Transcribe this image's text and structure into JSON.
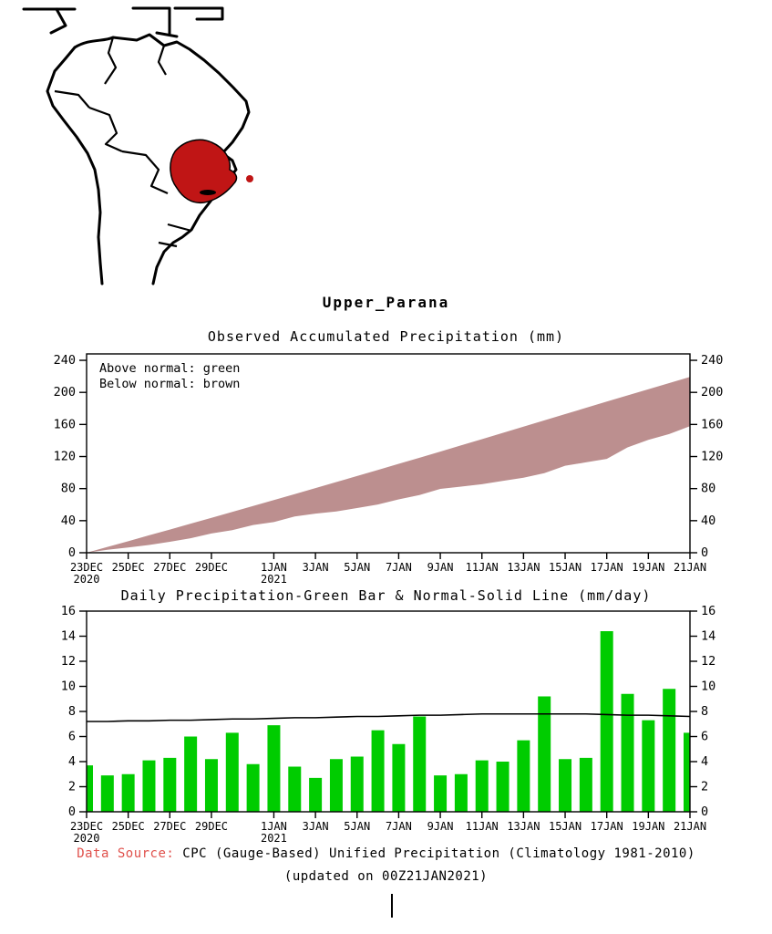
{
  "title": "Upper_Parana",
  "map": {
    "label": "South America locator map with Upper Parana basin highlighted",
    "highlight_color": "#c01515",
    "outline_color": "#000000"
  },
  "chart_data": [
    {
      "type": "area",
      "title": "Observed Accumulated Precipitation (mm)",
      "legend": [
        "Above normal: green",
        "Below normal: brown"
      ],
      "band_color": "#bc8f8f",
      "ylim": [
        0,
        248
      ],
      "yticks": [
        0,
        40,
        80,
        120,
        160,
        200,
        240
      ],
      "grid": false,
      "xticks": [
        {
          "day": 0,
          "label": "23DEC",
          "sub": "2020"
        },
        {
          "day": 2,
          "label": "25DEC"
        },
        {
          "day": 4,
          "label": "27DEC"
        },
        {
          "day": 6,
          "label": "29DEC"
        },
        {
          "day": 9,
          "label": "1JAN",
          "sub": "2021"
        },
        {
          "day": 11,
          "label": "3JAN"
        },
        {
          "day": 13,
          "label": "5JAN"
        },
        {
          "day": 15,
          "label": "7JAN"
        },
        {
          "day": 17,
          "label": "9JAN"
        },
        {
          "day": 19,
          "label": "11JAN"
        },
        {
          "day": 21,
          "label": "13JAN"
        },
        {
          "day": 23,
          "label": "15JAN"
        },
        {
          "day": 25,
          "label": "17JAN"
        },
        {
          "day": 27,
          "label": "19JAN"
        },
        {
          "day": 29,
          "label": "21JAN"
        }
      ],
      "series": [
        {
          "name": "normal accumulated (upper bound)",
          "values": [
            0,
            7.2,
            14.4,
            21.7,
            28.9,
            36.2,
            43.5,
            50.9,
            58.3,
            65.7,
            73.1,
            80.6,
            88.1,
            95.7,
            103.3,
            110.9,
            118.5,
            126.2,
            133.9,
            141.7,
            149.5,
            157.3,
            165.1,
            172.9,
            180.7,
            188.5,
            196.2,
            203.9,
            211.6,
            219.3
          ]
        },
        {
          "name": "observed accumulated (lower bound)",
          "values": [
            0,
            3.7,
            6.6,
            9.6,
            13.7,
            18.0,
            24.0,
            28.2,
            34.5,
            38.3,
            45.2,
            48.8,
            51.5,
            55.7,
            60.1,
            66.6,
            72.0,
            79.6,
            82.5,
            85.5,
            89.6,
            93.6,
            99.3,
            108.5,
            112.7,
            117.0,
            131.4,
            140.8,
            148.1,
            157.9
          ]
        }
      ]
    },
    {
      "type": "bar",
      "title": "Daily Precipitation-Green Bar & Normal-Solid Line (mm/day)",
      "bar_color": "#00cc00",
      "line_color": "#000000",
      "ylim": [
        0,
        16
      ],
      "yticks": [
        0,
        2,
        4,
        6,
        8,
        10,
        12,
        14,
        16
      ],
      "grid": false,
      "xticks": [
        {
          "day": 0,
          "label": "23DEC",
          "sub": "2020"
        },
        {
          "day": 2,
          "label": "25DEC"
        },
        {
          "day": 4,
          "label": "27DEC"
        },
        {
          "day": 6,
          "label": "29DEC"
        },
        {
          "day": 9,
          "label": "1JAN",
          "sub": "2021"
        },
        {
          "day": 11,
          "label": "3JAN"
        },
        {
          "day": 13,
          "label": "5JAN"
        },
        {
          "day": 15,
          "label": "7JAN"
        },
        {
          "day": 17,
          "label": "9JAN"
        },
        {
          "day": 19,
          "label": "11JAN"
        },
        {
          "day": 21,
          "label": "13JAN"
        },
        {
          "day": 23,
          "label": "15JAN"
        },
        {
          "day": 25,
          "label": "17JAN"
        },
        {
          "day": 27,
          "label": "19JAN"
        },
        {
          "day": 29,
          "label": "21JAN"
        }
      ],
      "series": [
        {
          "name": "daily precipitation (green bars)",
          "values": [
            3.7,
            2.9,
            3.0,
            4.1,
            4.3,
            6.0,
            4.2,
            6.3,
            3.8,
            6.9,
            3.6,
            2.7,
            4.2,
            4.4,
            6.5,
            5.4,
            7.6,
            2.9,
            3.0,
            4.1,
            4.0,
            5.7,
            9.2,
            4.2,
            4.3,
            14.4,
            9.4,
            7.3,
            9.8,
            6.3
          ]
        },
        {
          "name": "normal (solid line)",
          "values": [
            7.2,
            7.2,
            7.25,
            7.25,
            7.3,
            7.3,
            7.35,
            7.4,
            7.4,
            7.45,
            7.5,
            7.5,
            7.55,
            7.6,
            7.6,
            7.65,
            7.7,
            7.7,
            7.75,
            7.8,
            7.8,
            7.8,
            7.8,
            7.8,
            7.8,
            7.75,
            7.7,
            7.7,
            7.65,
            7.6
          ]
        }
      ]
    }
  ],
  "footer": {
    "prefix": "Data Source:",
    "prefix_color": "#e0524d",
    "source": "CPC (Gauge-Based) Unified Precipitation (Climatology 1981-2010)",
    "updated": "(updated on 00Z21JAN2021)"
  }
}
